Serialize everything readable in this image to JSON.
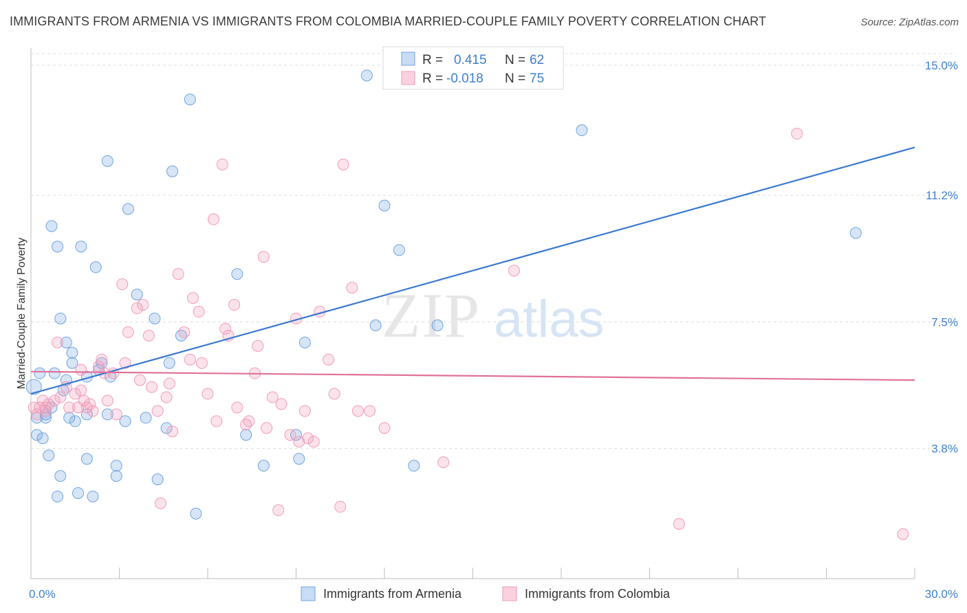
{
  "header": {
    "title": "IMMIGRANTS FROM ARMENIA VS IMMIGRANTS FROM COLOMBIA MARRIED-COUPLE FAMILY POVERTY CORRELATION CHART",
    "source": "Source: ZipAtlas.com"
  },
  "watermark": {
    "zip": "ZIP",
    "atlas": "atlas"
  },
  "legend": {
    "r_label": "R =",
    "n_label": "N =",
    "rows": [
      {
        "r": "0.415",
        "n": "62",
        "color": "#6fa3e0"
      },
      {
        "r": "-0.018",
        "n": "75",
        "color": "#f29ab8"
      }
    ]
  },
  "chart_data": {
    "type": "scatter",
    "ylabel": "Married-Couple Family Poverty",
    "xlim": [
      0,
      30
    ],
    "ylim": [
      0,
      15.5
    ],
    "x_tick_labels": [
      {
        "value": 0,
        "label": "0.0%"
      },
      {
        "value": 30,
        "label": "30.0%"
      }
    ],
    "y_tick_labels": [
      {
        "value": 3.8,
        "label": "3.8%"
      },
      {
        "value": 7.5,
        "label": "7.5%"
      },
      {
        "value": 11.2,
        "label": "11.2%"
      },
      {
        "value": 15.0,
        "label": "15.0%"
      }
    ],
    "grid": true,
    "series": [
      {
        "name": "Immigrants from Armenia",
        "color": "#6fa3e0",
        "trend": {
          "x": [
            0,
            30
          ],
          "y": [
            5.4,
            12.6
          ]
        },
        "points": [
          [
            0.1,
            5.6
          ],
          [
            0.2,
            4.7
          ],
          [
            0.2,
            4.2
          ],
          [
            0.3,
            6.0
          ],
          [
            0.4,
            4.1
          ],
          [
            0.5,
            4.8
          ],
          [
            0.5,
            4.7
          ],
          [
            0.6,
            3.6
          ],
          [
            0.7,
            5.0
          ],
          [
            0.7,
            10.3
          ],
          [
            0.8,
            6.0
          ],
          [
            0.9,
            2.4
          ],
          [
            0.9,
            9.7
          ],
          [
            1.0,
            3.0
          ],
          [
            1.0,
            7.6
          ],
          [
            1.1,
            5.5
          ],
          [
            1.2,
            6.9
          ],
          [
            1.2,
            5.8
          ],
          [
            1.3,
            4.7
          ],
          [
            1.4,
            6.6
          ],
          [
            1.4,
            6.3
          ],
          [
            1.6,
            2.5
          ],
          [
            1.7,
            9.7
          ],
          [
            1.9,
            4.8
          ],
          [
            1.9,
            5.9
          ],
          [
            1.9,
            3.5
          ],
          [
            2.1,
            2.4
          ],
          [
            2.2,
            9.1
          ],
          [
            2.3,
            6.1
          ],
          [
            2.4,
            6.3
          ],
          [
            2.6,
            12.2
          ],
          [
            2.6,
            4.8
          ],
          [
            2.7,
            5.9
          ],
          [
            2.9,
            3.3
          ],
          [
            2.9,
            3.0
          ],
          [
            3.3,
            10.8
          ],
          [
            3.6,
            8.3
          ],
          [
            3.9,
            4.7
          ],
          [
            4.2,
            7.6
          ],
          [
            4.3,
            2.9
          ],
          [
            4.6,
            4.4
          ],
          [
            4.7,
            6.3
          ],
          [
            4.8,
            11.9
          ],
          [
            5.1,
            7.1
          ],
          [
            5.4,
            14.0
          ],
          [
            5.6,
            1.9
          ],
          [
            7.0,
            8.9
          ],
          [
            7.3,
            4.2
          ],
          [
            7.9,
            3.3
          ],
          [
            9.1,
            3.5
          ],
          [
            9.3,
            6.9
          ],
          [
            11.4,
            14.7
          ],
          [
            11.7,
            7.4
          ],
          [
            12.0,
            10.9
          ],
          [
            12.5,
            9.6
          ],
          [
            13.0,
            3.3
          ],
          [
            13.8,
            7.4
          ],
          [
            18.7,
            13.1
          ],
          [
            28.0,
            10.1
          ],
          [
            9.0,
            4.2
          ],
          [
            3.2,
            4.6
          ],
          [
            1.5,
            4.6
          ]
        ]
      },
      {
        "name": "Immigrants from Colombia",
        "color": "#f29ab8",
        "trend": {
          "x": [
            0,
            30
          ],
          "y": [
            6.05,
            5.8
          ]
        },
        "points": [
          [
            0.1,
            5.0
          ],
          [
            0.2,
            4.8
          ],
          [
            0.3,
            5.0
          ],
          [
            0.4,
            5.2
          ],
          [
            0.5,
            5.0
          ],
          [
            0.5,
            4.9
          ],
          [
            0.6,
            5.1
          ],
          [
            0.8,
            5.2
          ],
          [
            0.9,
            6.9
          ],
          [
            1.0,
            5.3
          ],
          [
            1.2,
            5.6
          ],
          [
            1.3,
            5.0
          ],
          [
            1.5,
            5.4
          ],
          [
            1.6,
            5.0
          ],
          [
            1.7,
            6.1
          ],
          [
            1.7,
            5.5
          ],
          [
            1.8,
            5.2
          ],
          [
            1.9,
            5.0
          ],
          [
            2.0,
            5.1
          ],
          [
            2.1,
            4.9
          ],
          [
            2.3,
            6.2
          ],
          [
            2.4,
            6.4
          ],
          [
            2.5,
            6.0
          ],
          [
            2.6,
            5.2
          ],
          [
            2.8,
            6.0
          ],
          [
            2.9,
            4.8
          ],
          [
            3.1,
            8.6
          ],
          [
            3.2,
            6.3
          ],
          [
            3.3,
            7.2
          ],
          [
            3.6,
            7.9
          ],
          [
            3.7,
            5.8
          ],
          [
            3.8,
            8.0
          ],
          [
            4.0,
            7.1
          ],
          [
            4.1,
            5.6
          ],
          [
            4.3,
            4.9
          ],
          [
            4.4,
            2.2
          ],
          [
            4.6,
            5.3
          ],
          [
            4.7,
            5.7
          ],
          [
            4.8,
            4.3
          ],
          [
            5.0,
            8.9
          ],
          [
            5.2,
            7.2
          ],
          [
            5.4,
            6.4
          ],
          [
            5.5,
            8.2
          ],
          [
            5.7,
            7.8
          ],
          [
            5.8,
            6.3
          ],
          [
            6.0,
            5.4
          ],
          [
            6.2,
            10.5
          ],
          [
            6.3,
            4.6
          ],
          [
            6.5,
            12.1
          ],
          [
            6.6,
            7.3
          ],
          [
            6.7,
            7.1
          ],
          [
            6.9,
            8.0
          ],
          [
            7.0,
            5.0
          ],
          [
            7.3,
            4.5
          ],
          [
            7.4,
            4.6
          ],
          [
            7.6,
            6.0
          ],
          [
            7.7,
            6.8
          ],
          [
            7.9,
            9.4
          ],
          [
            8.0,
            4.4
          ],
          [
            8.2,
            5.3
          ],
          [
            8.4,
            2.0
          ],
          [
            8.5,
            5.1
          ],
          [
            8.8,
            4.2
          ],
          [
            9.0,
            7.6
          ],
          [
            9.1,
            4.0
          ],
          [
            9.3,
            4.9
          ],
          [
            9.4,
            4.1
          ],
          [
            9.6,
            4.0
          ],
          [
            9.8,
            7.8
          ],
          [
            10.1,
            6.4
          ],
          [
            10.3,
            5.4
          ],
          [
            10.5,
            2.1
          ],
          [
            10.6,
            12.1
          ],
          [
            10.9,
            8.5
          ],
          [
            11.1,
            4.9
          ]
        ],
        "extra_points": [
          [
            11.5,
            4.9
          ],
          [
            12.0,
            4.4
          ],
          [
            14.0,
            3.4
          ],
          [
            16.4,
            9.0
          ],
          [
            22.0,
            1.6
          ],
          [
            26.0,
            13.0
          ],
          [
            29.6,
            1.3
          ]
        ]
      }
    ]
  },
  "bottom_legend": [
    {
      "label": "Immigrants from Armenia",
      "color": "#6fa3e0"
    },
    {
      "label": "Immigrants from Colombia",
      "color": "#f29ab8"
    }
  ]
}
